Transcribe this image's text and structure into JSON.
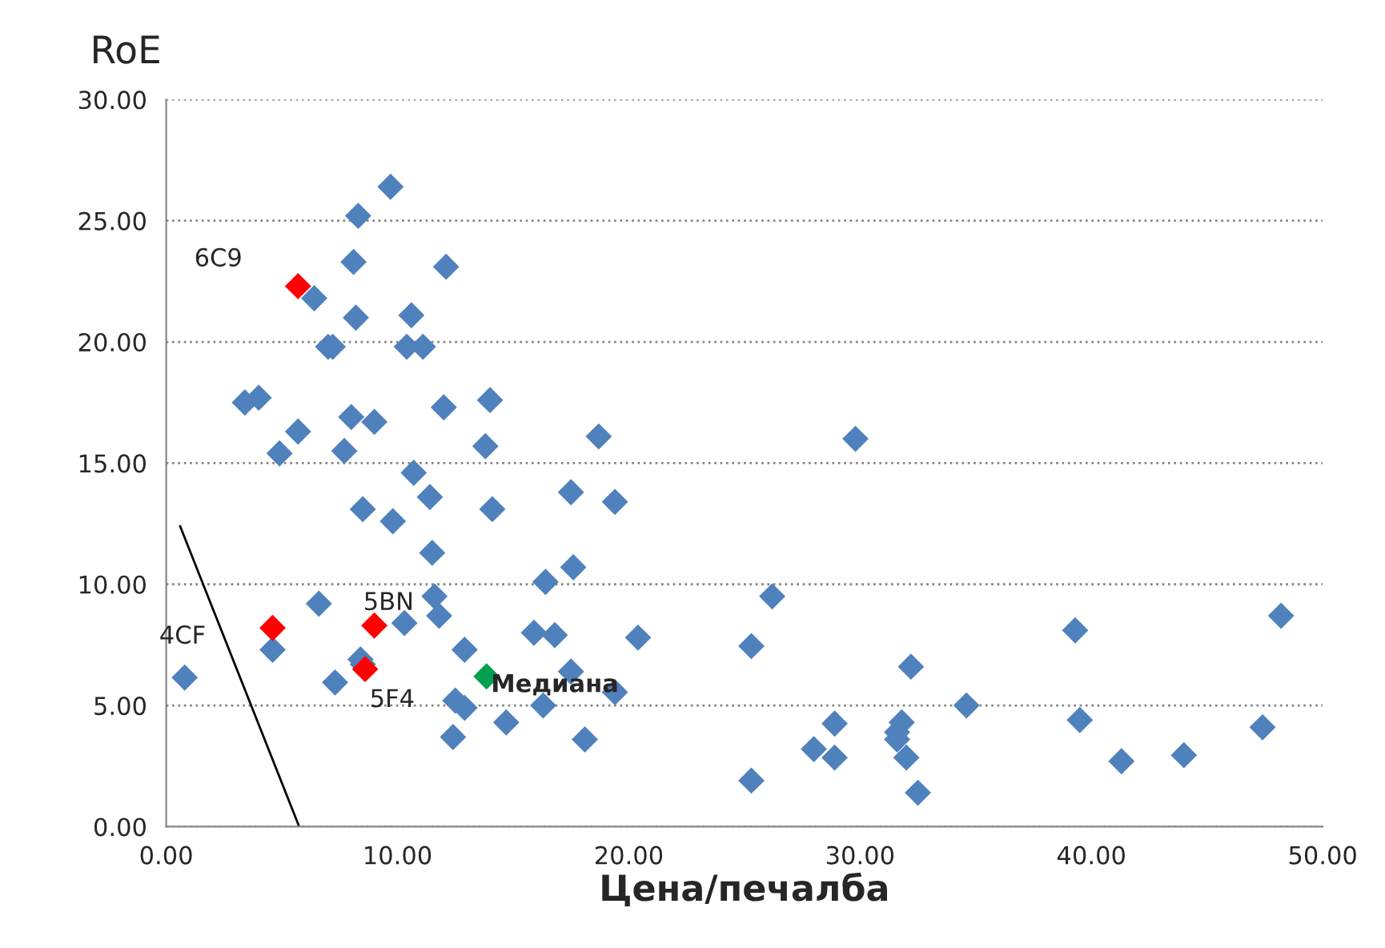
{
  "chart_data": {
    "type": "scatter",
    "xlabel": "Цена/печалба",
    "ylabel": "RoE",
    "xlim": [
      0,
      50
    ],
    "ylim": [
      0,
      30
    ],
    "xticks": [
      {
        "value": 0,
        "label": "0.00"
      },
      {
        "value": 10,
        "label": "10.00"
      },
      {
        "value": 20,
        "label": "20.00"
      },
      {
        "value": 30,
        "label": "30.00"
      },
      {
        "value": 40,
        "label": "40.00"
      },
      {
        "value": 50,
        "label": "50.00"
      }
    ],
    "yticks": [
      {
        "value": 0,
        "label": "0.00"
      },
      {
        "value": 5,
        "label": "5.00"
      },
      {
        "value": 10,
        "label": "10.00"
      },
      {
        "value": 15,
        "label": "15.00"
      },
      {
        "value": 20,
        "label": "20.00"
      },
      {
        "value": 25,
        "label": "25.00"
      },
      {
        "value": 30,
        "label": "30.00"
      }
    ],
    "grid": "y",
    "marker": "diamond",
    "series": [
      {
        "color": "#4f81bd",
        "x": [
          0.8,
          3.4,
          4.0,
          4.9,
          5.7,
          6.4,
          4.6,
          6.6,
          7.0,
          7.2,
          7.3,
          7.7,
          8.0,
          8.1,
          8.2,
          8.3,
          8.5,
          8.4,
          8.5,
          9.0,
          9.7,
          9.8,
          10.3,
          10.4,
          10.6,
          10.7,
          11.1,
          11.4,
          11.5,
          11.6,
          11.8,
          12.0,
          12.1,
          12.4,
          12.5,
          12.9,
          12.9,
          13.8,
          14.0,
          14.1,
          14.7,
          15.9,
          16.3,
          16.4,
          16.8,
          17.5,
          17.6,
          17.5,
          18.1,
          18.7,
          19.4,
          19.4,
          20.4,
          29.8,
          26.2,
          25.3,
          25.3,
          32.2,
          28.9,
          28.0,
          28.9,
          31.8,
          31.6,
          31.6,
          32.0,
          32.5,
          34.6,
          39.3,
          39.5,
          41.3,
          44.0,
          47.4,
          48.2
        ],
        "values": [
          6.15,
          17.5,
          17.7,
          15.4,
          16.3,
          21.8,
          7.3,
          9.2,
          19.8,
          19.8,
          5.95,
          15.5,
          16.9,
          23.3,
          21.0,
          25.2,
          13.1,
          6.9,
          6.7,
          16.7,
          26.4,
          12.6,
          8.4,
          19.8,
          21.1,
          14.6,
          19.8,
          13.6,
          11.3,
          9.5,
          8.7,
          17.3,
          23.1,
          3.7,
          5.2,
          4.9,
          7.3,
          15.7,
          17.6,
          13.1,
          4.3,
          8.0,
          5.0,
          10.1,
          7.9,
          13.8,
          10.7,
          6.4,
          3.6,
          16.1,
          13.4,
          5.55,
          7.8,
          16.0,
          9.5,
          7.45,
          1.9,
          6.6,
          4.25,
          3.2,
          2.85,
          4.3,
          3.9,
          3.6,
          2.85,
          1.4,
          5.0,
          8.1,
          4.4,
          2.7,
          2.95,
          4.1,
          8.7
        ]
      },
      {
        "color": "#ff0000",
        "x": [
          5.7,
          4.6,
          9.0,
          8.6
        ],
        "values": [
          22.3,
          8.2,
          8.3,
          6.5
        ]
      },
      {
        "color": "#00a050",
        "x": [
          13.85
        ],
        "values": [
          6.2
        ]
      },
      {
        "type": "line",
        "color": "#000000",
        "marker": "none",
        "x": [
          0.6,
          5.75
        ],
        "values": [
          12.4,
          0
        ]
      }
    ],
    "annotations": [
      {
        "text": "6C9",
        "x": 5.7,
        "y": 22.3
      },
      {
        "text": "4CF",
        "x": 4.6,
        "y": 8.2
      },
      {
        "text": "5BN",
        "x": 9.0,
        "y": 8.3
      },
      {
        "text": "5F4",
        "x": 8.6,
        "y": 6.5
      },
      {
        "text": "Медиана",
        "x": 13.85,
        "y": 6.2
      }
    ]
  }
}
